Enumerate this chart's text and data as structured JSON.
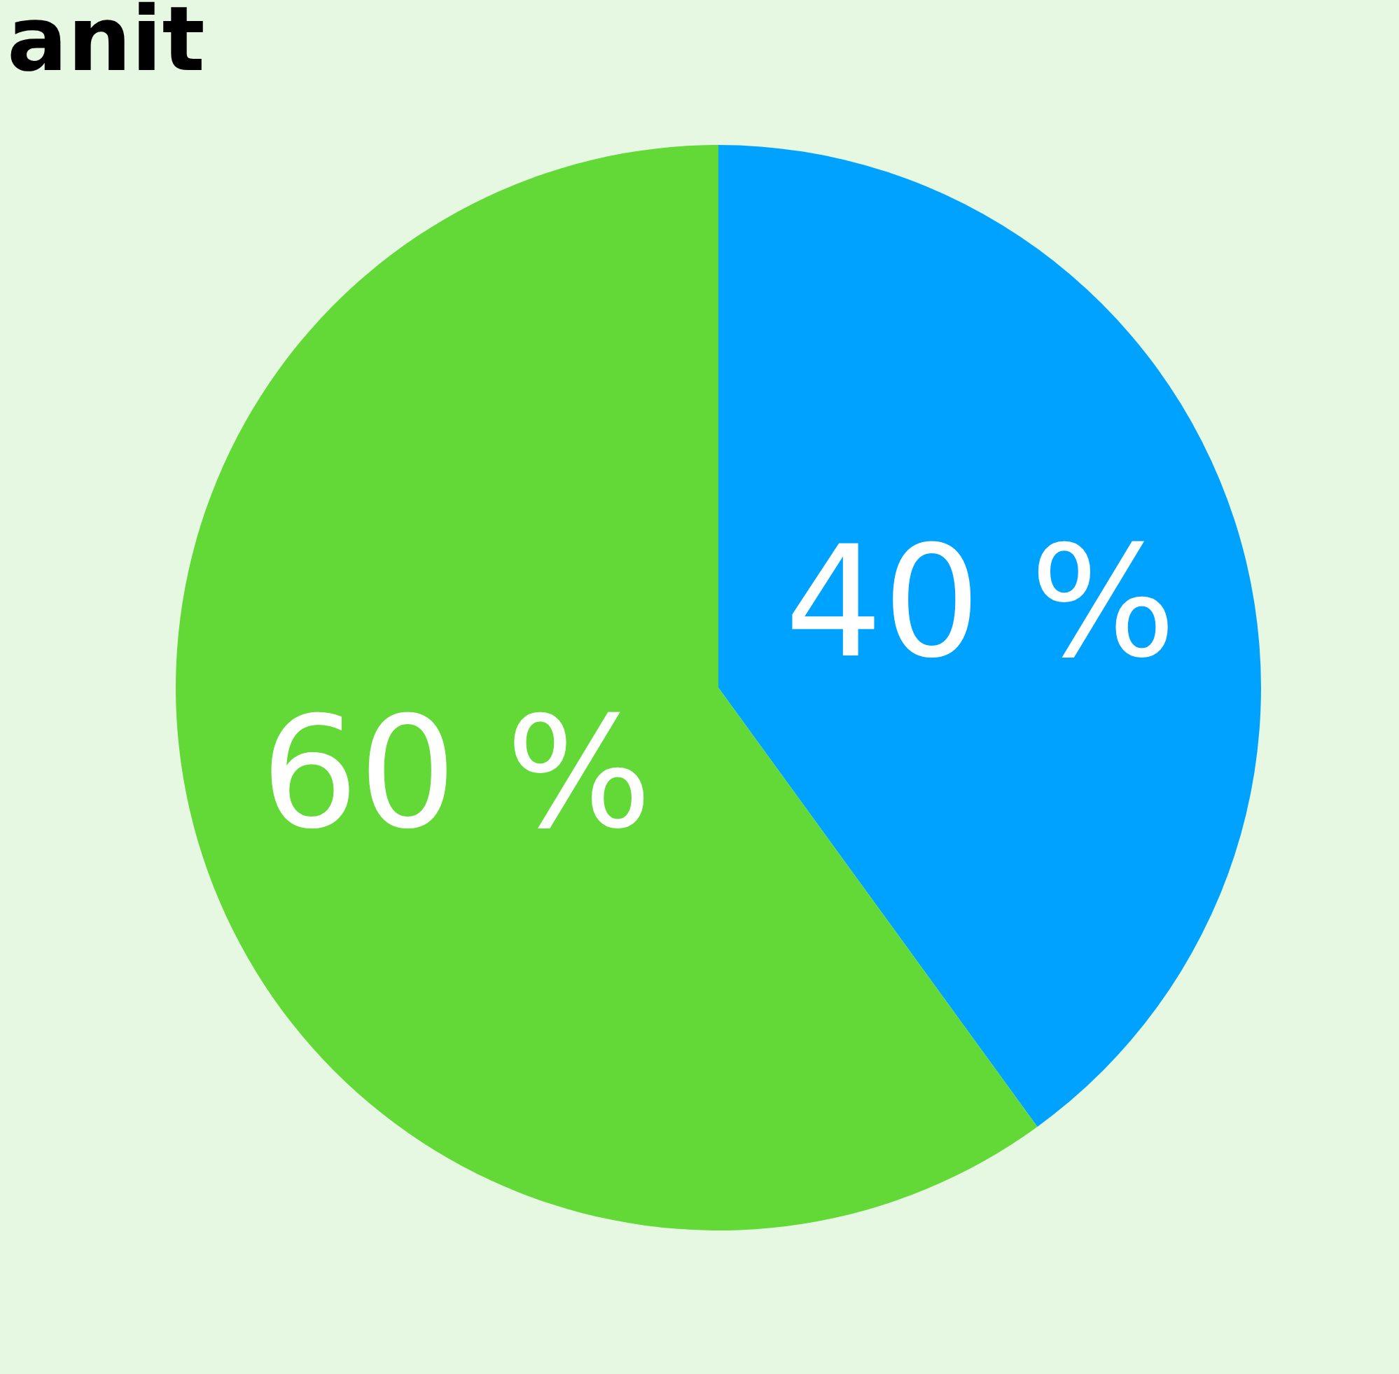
{
  "chart_data": {
    "type": "pie",
    "title": "anit",
    "categories": [
      null,
      null
    ],
    "values": [
      40,
      60
    ],
    "colors": [
      "#00a2ff",
      "#62d936"
    ],
    "value_labels": [
      "40 %",
      "60 %"
    ]
  }
}
